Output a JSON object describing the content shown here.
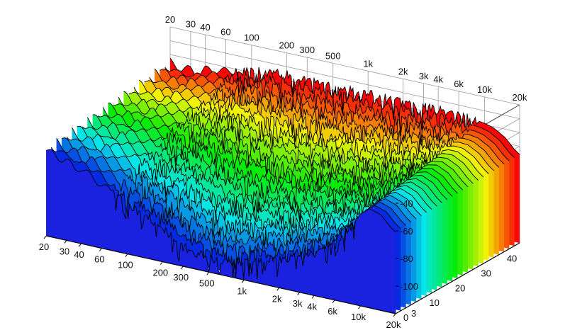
{
  "chart_data": {
    "type": "waterfall-3d",
    "title": "",
    "frequency_axis": {
      "label": "",
      "scale": "log",
      "range": [
        20,
        20000
      ],
      "ticks": [
        {
          "value": 20,
          "label": "20"
        },
        {
          "value": 30,
          "label": "30"
        },
        {
          "value": 40,
          "label": "40"
        },
        {
          "value": 60,
          "label": "60"
        },
        {
          "value": 100,
          "label": "100"
        },
        {
          "value": 200,
          "label": "200"
        },
        {
          "value": 300,
          "label": "300"
        },
        {
          "value": 500,
          "label": "500"
        },
        {
          "value": 1000,
          "label": "1k"
        },
        {
          "value": 2000,
          "label": "2k"
        },
        {
          "value": 3000,
          "label": "3k"
        },
        {
          "value": 4000,
          "label": "4k"
        },
        {
          "value": 6000,
          "label": "6k"
        },
        {
          "value": 10000,
          "label": "10k"
        },
        {
          "value": 20000,
          "label": "20k"
        }
      ]
    },
    "time_axis": {
      "label": "",
      "range": [
        0,
        48
      ],
      "ticks": [
        {
          "value": 0,
          "label": "0"
        },
        {
          "value": 3,
          "label": "3"
        },
        {
          "value": 10,
          "label": "10"
        },
        {
          "value": 20,
          "label": "20"
        },
        {
          "value": 30,
          "label": "30"
        },
        {
          "value": 40,
          "label": "40"
        }
      ]
    },
    "level_axis": {
      "label": "",
      "range": [
        -120,
        -20
      ],
      "ticks": [
        {
          "value": -40,
          "label": "-40"
        },
        {
          "value": -60,
          "label": "-60"
        },
        {
          "value": -80,
          "label": "-80"
        },
        {
          "value": -100,
          "label": "-100"
        }
      ]
    },
    "grid": true,
    "colormap": "rainbow: back slices red, front slices blue",
    "slice_times": [
      0,
      2,
      4,
      6,
      8,
      10,
      12,
      14,
      16,
      18,
      20,
      22,
      24,
      26,
      28,
      30,
      32,
      34,
      36,
      38,
      40,
      42,
      44,
      46,
      48
    ],
    "profile": {
      "freqs": [
        20,
        25,
        30,
        35,
        40,
        50,
        60,
        80,
        100,
        150,
        200,
        300,
        500,
        800,
        1000,
        2000,
        3000,
        5000,
        8000,
        10000,
        12000,
        15000,
        18000,
        20000
      ],
      "level_at_t0": [
        -45,
        -49,
        -47,
        -50,
        -45,
        -44,
        -43,
        -41,
        -39,
        -37,
        -36,
        -36,
        -36,
        -37,
        -37,
        -37,
        -37,
        -37,
        -38,
        -39,
        -41,
        -46,
        -53,
        -56
      ],
      "decay_db_per_unit_time": [
        0.25,
        0.27,
        0.3,
        0.36,
        0.42,
        0.55,
        0.65,
        0.8,
        0.95,
        1.1,
        1.25,
        1.45,
        1.55,
        1.5,
        1.45,
        1.3,
        1.2,
        1.0,
        0.6,
        0.3,
        0.15,
        0.1,
        0.1,
        0.1
      ]
    },
    "colors": {
      "front_fill": "#1a22e0",
      "frame": "#444444",
      "grid": "#9a9a9a",
      "trace": "#000000"
    }
  }
}
